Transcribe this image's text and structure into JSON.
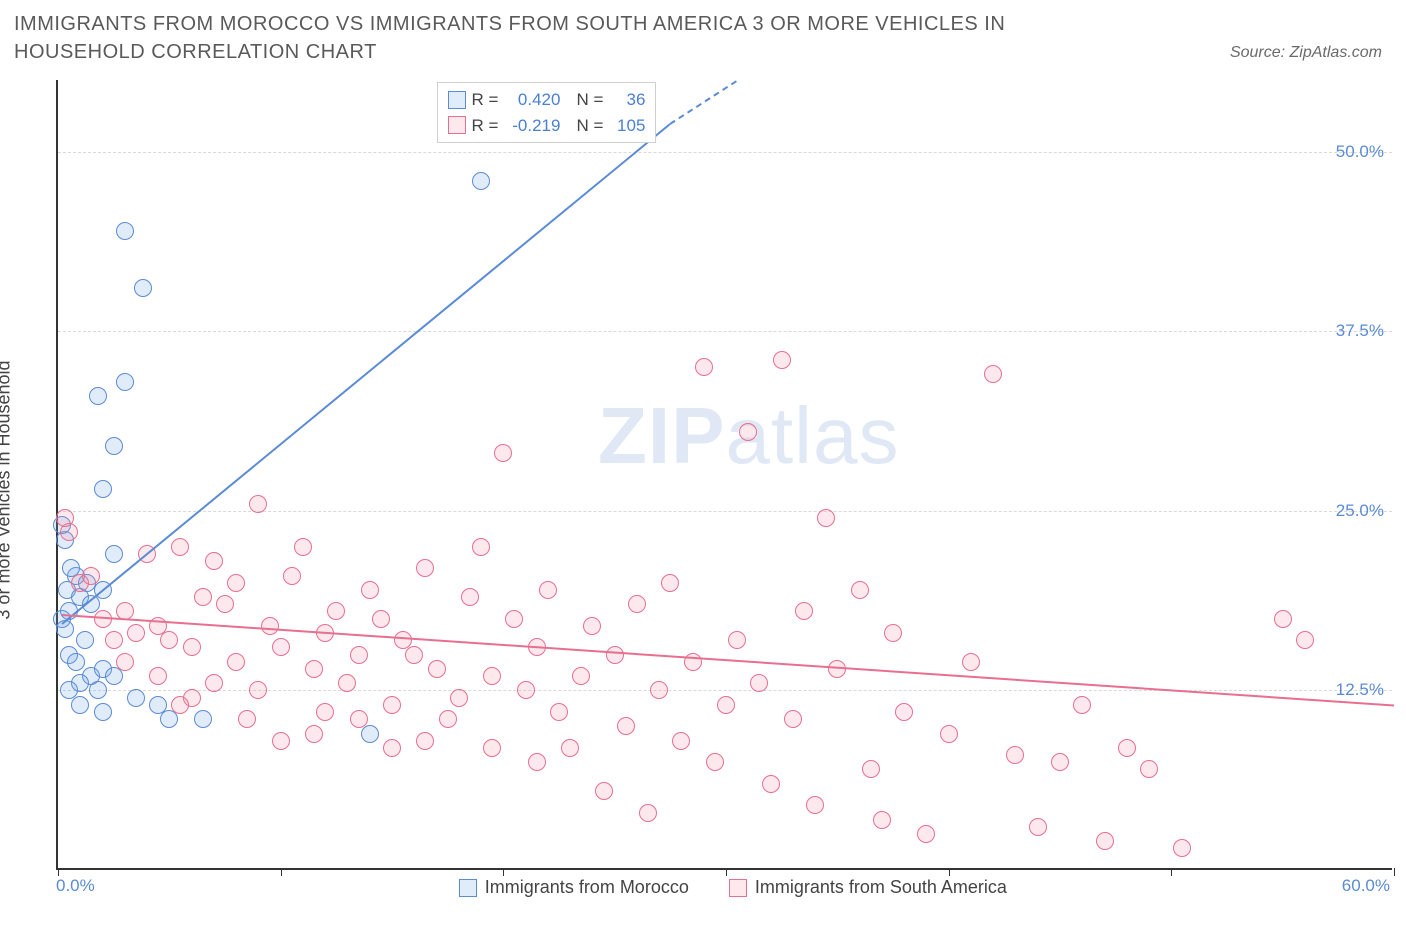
{
  "title": "IMMIGRANTS FROM MOROCCO VS IMMIGRANTS FROM SOUTH AMERICA 3 OR MORE VEHICLES IN HOUSEHOLD CORRELATION CHART",
  "source": "Source: ZipAtlas.com",
  "y_axis_label": "3 or more Vehicles in Household",
  "watermark_bold": "ZIP",
  "watermark_rest": "atlas",
  "chart": {
    "type": "scatter",
    "background_color": "#ffffff",
    "grid_color": "#d9d9d9",
    "axis_color": "#333333",
    "tick_label_color": "#5b8bd4",
    "xlim": [
      0,
      60
    ],
    "ylim": [
      0,
      55
    ],
    "x_ticks": [
      0,
      10,
      20,
      30,
      40,
      50,
      60
    ],
    "x_tick_labels": {
      "0": "0.0%",
      "60": "60.0%"
    },
    "y_gridlines": [
      12.5,
      25.0,
      37.5,
      50.0
    ],
    "y_tick_labels": [
      "12.5%",
      "25.0%",
      "37.5%",
      "50.0%"
    ],
    "marker_radius": 9,
    "marker_stroke_width": 1.5,
    "marker_fill_opacity": 0.18
  },
  "series": [
    {
      "name": "Immigrants from Morocco",
      "stroke": "#5b8bd4",
      "fill": "rgba(120,170,230,0.22)",
      "R": "0.420",
      "N": "36",
      "trend": {
        "x1": 0.2,
        "y1": 17.2,
        "x2": 27.5,
        "y2": 52.0,
        "dash_to_x": 30.5,
        "dash_to_y": 55.0
      },
      "points": [
        [
          0.2,
          17.5
        ],
        [
          0.3,
          16.8
        ],
        [
          0.5,
          18.0
        ],
        [
          0.4,
          19.5
        ],
        [
          0.8,
          20.5
        ],
        [
          1.0,
          19.0
        ],
        [
          0.6,
          21.0
        ],
        [
          1.2,
          16.0
        ],
        [
          0.5,
          15.0
        ],
        [
          0.8,
          14.5
        ],
        [
          1.5,
          13.5
        ],
        [
          1.0,
          13.0
        ],
        [
          2.0,
          14.0
        ],
        [
          1.8,
          12.5
        ],
        [
          2.5,
          13.5
        ],
        [
          3.5,
          12.0
        ],
        [
          2.0,
          11.0
        ],
        [
          1.0,
          11.5
        ],
        [
          0.5,
          12.5
        ],
        [
          1.5,
          18.5
        ],
        [
          2.0,
          19.5
        ],
        [
          2.5,
          22.0
        ],
        [
          1.3,
          20.0
        ],
        [
          0.3,
          23.0
        ],
        [
          0.2,
          24.0
        ],
        [
          2.0,
          26.5
        ],
        [
          2.5,
          29.5
        ],
        [
          1.8,
          33.0
        ],
        [
          3.0,
          34.0
        ],
        [
          3.8,
          40.5
        ],
        [
          3.0,
          44.5
        ],
        [
          19.0,
          48.0
        ],
        [
          6.5,
          10.5
        ],
        [
          14.0,
          9.5
        ],
        [
          4.5,
          11.5
        ],
        [
          5.0,
          10.5
        ]
      ]
    },
    {
      "name": "Immigrants from South America",
      "stroke": "#e76f8f",
      "fill": "rgba(240,140,165,0.20)",
      "R": "-0.219",
      "N": "105",
      "trend": {
        "x1": 0.2,
        "y1": 17.8,
        "x2": 60.0,
        "y2": 11.5
      },
      "points": [
        [
          0.5,
          23.5
        ],
        [
          0.3,
          24.5
        ],
        [
          1.0,
          20.0
        ],
        [
          1.5,
          20.5
        ],
        [
          2.0,
          17.5
        ],
        [
          3.0,
          18.0
        ],
        [
          3.5,
          16.5
        ],
        [
          4.0,
          22.0
        ],
        [
          4.5,
          17.0
        ],
        [
          5.0,
          16.0
        ],
        [
          5.5,
          22.5
        ],
        [
          6.0,
          15.5
        ],
        [
          6.5,
          19.0
        ],
        [
          7.0,
          21.5
        ],
        [
          7.5,
          18.5
        ],
        [
          8.0,
          20.0
        ],
        [
          8.0,
          14.5
        ],
        [
          9.0,
          25.5
        ],
        [
          9.5,
          17.0
        ],
        [
          10.0,
          15.5
        ],
        [
          10.5,
          20.5
        ],
        [
          11.0,
          22.5
        ],
        [
          11.5,
          14.0
        ],
        [
          12.0,
          16.5
        ],
        [
          12.5,
          18.0
        ],
        [
          13.0,
          13.0
        ],
        [
          13.5,
          15.0
        ],
        [
          14.0,
          19.5
        ],
        [
          14.5,
          17.5
        ],
        [
          15.0,
          11.5
        ],
        [
          15.5,
          16.0
        ],
        [
          16.0,
          15.0
        ],
        [
          16.5,
          21.0
        ],
        [
          17.0,
          14.0
        ],
        [
          17.5,
          10.5
        ],
        [
          18.0,
          12.0
        ],
        [
          18.5,
          19.0
        ],
        [
          19.0,
          22.5
        ],
        [
          19.5,
          13.5
        ],
        [
          20.0,
          29.0
        ],
        [
          20.5,
          17.5
        ],
        [
          21.0,
          12.5
        ],
        [
          21.5,
          15.5
        ],
        [
          22.0,
          19.5
        ],
        [
          22.5,
          11.0
        ],
        [
          23.0,
          8.5
        ],
        [
          23.5,
          13.5
        ],
        [
          24.0,
          17.0
        ],
        [
          24.5,
          5.5
        ],
        [
          25.0,
          15.0
        ],
        [
          25.5,
          10.0
        ],
        [
          26.0,
          18.5
        ],
        [
          26.5,
          4.0
        ],
        [
          27.0,
          12.5
        ],
        [
          27.5,
          20.0
        ],
        [
          28.0,
          9.0
        ],
        [
          28.5,
          14.5
        ],
        [
          29.0,
          35.0
        ],
        [
          29.5,
          7.5
        ],
        [
          30.0,
          11.5
        ],
        [
          30.5,
          16.0
        ],
        [
          31.0,
          30.5
        ],
        [
          31.5,
          13.0
        ],
        [
          32.0,
          6.0
        ],
        [
          32.5,
          35.5
        ],
        [
          33.0,
          10.5
        ],
        [
          33.5,
          18.0
        ],
        [
          34.0,
          4.5
        ],
        [
          34.5,
          24.5
        ],
        [
          35.0,
          14.0
        ],
        [
          36.0,
          19.5
        ],
        [
          36.5,
          7.0
        ],
        [
          37.0,
          3.5
        ],
        [
          37.5,
          16.5
        ],
        [
          38.0,
          11.0
        ],
        [
          39.0,
          2.5
        ],
        [
          40.0,
          9.5
        ],
        [
          41.0,
          14.5
        ],
        [
          42.0,
          34.5
        ],
        [
          43.0,
          8.0
        ],
        [
          44.0,
          3.0
        ],
        [
          45.0,
          7.5
        ],
        [
          46.0,
          11.5
        ],
        [
          47.0,
          2.0
        ],
        [
          48.0,
          8.5
        ],
        [
          49.0,
          7.0
        ],
        [
          50.5,
          1.5
        ],
        [
          55.0,
          17.5
        ],
        [
          56.0,
          16.0
        ],
        [
          6.0,
          12.0
        ],
        [
          8.5,
          10.5
        ],
        [
          10.0,
          9.0
        ],
        [
          12.0,
          11.0
        ],
        [
          4.5,
          13.5
        ],
        [
          3.0,
          14.5
        ],
        [
          2.5,
          16.0
        ],
        [
          5.5,
          11.5
        ],
        [
          7.0,
          13.0
        ],
        [
          9.0,
          12.5
        ],
        [
          11.5,
          9.5
        ],
        [
          13.5,
          10.5
        ],
        [
          15.0,
          8.5
        ],
        [
          16.5,
          9.0
        ],
        [
          19.5,
          8.5
        ],
        [
          21.5,
          7.5
        ]
      ]
    }
  ],
  "legend_top": {
    "R_label": "R =",
    "N_label": "N ="
  },
  "legend_bottom": {
    "items": [
      "Immigrants from Morocco",
      "Immigrants from South America"
    ]
  }
}
